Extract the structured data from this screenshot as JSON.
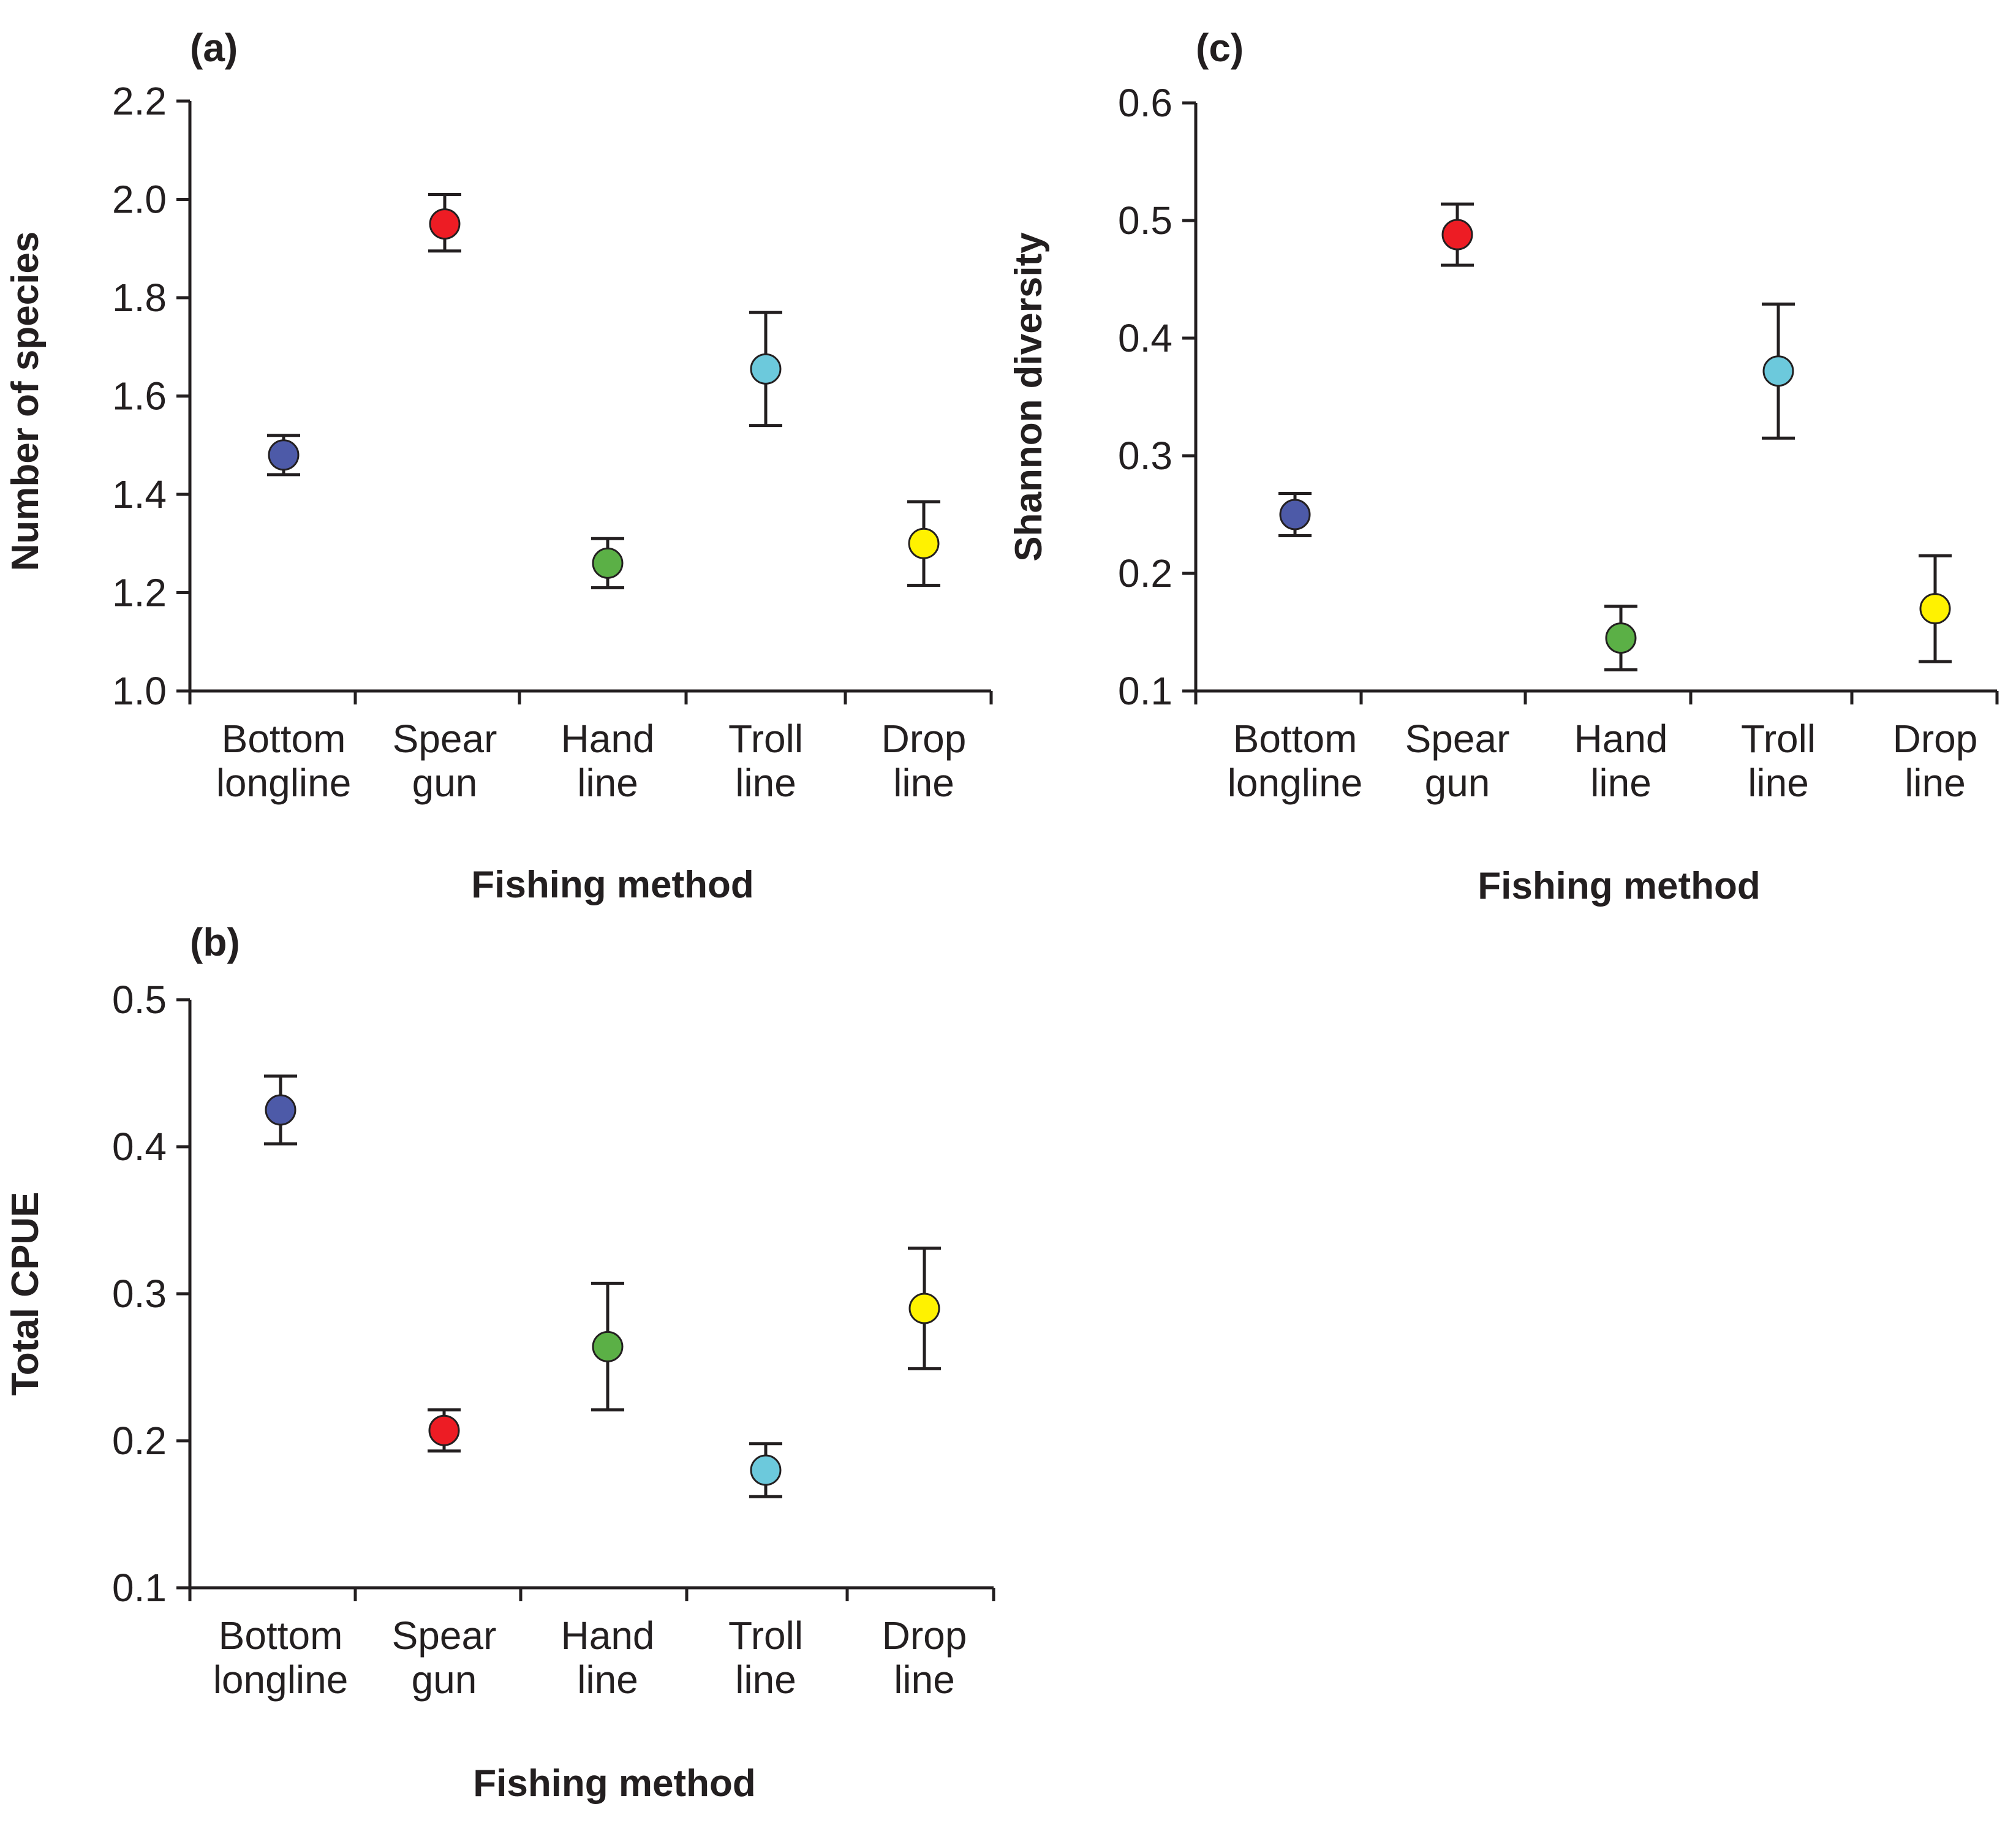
{
  "chart_data": [
    {
      "id": "a",
      "type": "scatter",
      "panel_label": "(a)",
      "xlabel": "Fishing method",
      "ylabel": "Number of species",
      "categories": [
        [
          "Bottom",
          "longline"
        ],
        [
          "Spear",
          "gun"
        ],
        [
          "Hand",
          "line"
        ],
        [
          "Troll",
          "line"
        ],
        [
          "Drop",
          "line"
        ]
      ],
      "ylim": [
        1.0,
        2.2
      ],
      "yticks": [
        1.0,
        1.2,
        1.4,
        1.6,
        1.8,
        2.0,
        2.2
      ],
      "ytick_labels": [
        "1.0",
        "1.2",
        "1.4",
        "1.6",
        "1.8",
        "2.0",
        "2.2"
      ],
      "values": [
        1.48,
        1.95,
        1.26,
        1.655,
        1.3
      ],
      "err_low": [
        1.44,
        1.895,
        1.21,
        1.54,
        1.215
      ],
      "err_high": [
        1.52,
        2.01,
        1.31,
        1.77,
        1.385
      ],
      "colors": [
        "#4d5aa8",
        "#ed1c24",
        "#5bb046",
        "#6cc9dc",
        "#fff200"
      ]
    },
    {
      "id": "b",
      "type": "scatter",
      "panel_label": "(b)",
      "xlabel": "Fishing method",
      "ylabel": "Total CPUE",
      "categories": [
        [
          "Bottom",
          "longline"
        ],
        [
          "Spear",
          "gun"
        ],
        [
          "Hand",
          "line"
        ],
        [
          "Troll",
          "line"
        ],
        [
          "Drop",
          "line"
        ]
      ],
      "ylim": [
        0.1,
        0.5
      ],
      "yticks": [
        0.1,
        0.2,
        0.3,
        0.4,
        0.5
      ],
      "ytick_labels": [
        "0.1",
        "0.2",
        "0.3",
        "0.4",
        "0.5"
      ],
      "values": [
        0.425,
        0.207,
        0.264,
        0.18,
        0.29
      ],
      "err_low": [
        0.402,
        0.193,
        0.221,
        0.162,
        0.249
      ],
      "err_high": [
        0.448,
        0.221,
        0.307,
        0.198,
        0.331
      ],
      "colors": [
        "#4d5aa8",
        "#ed1c24",
        "#5bb046",
        "#6cc9dc",
        "#fff200"
      ]
    },
    {
      "id": "c",
      "type": "scatter",
      "panel_label": "(c)",
      "xlabel": "Fishing method",
      "ylabel": "Shannon diversity",
      "categories": [
        [
          "Bottom",
          "longline"
        ],
        [
          "Spear",
          "gun"
        ],
        [
          "Hand",
          "line"
        ],
        [
          "Troll",
          "line"
        ],
        [
          "Drop",
          "line"
        ]
      ],
      "ylim": [
        0.1,
        0.6
      ],
      "yticks": [
        0.1,
        0.2,
        0.3,
        0.4,
        0.5,
        0.6
      ],
      "ytick_labels": [
        "0.1",
        "0.2",
        "0.3",
        "0.4",
        "0.5",
        "0.6"
      ],
      "values": [
        0.25,
        0.488,
        0.145,
        0.372,
        0.17
      ],
      "err_low": [
        0.232,
        0.462,
        0.118,
        0.315,
        0.125
      ],
      "err_high": [
        0.268,
        0.514,
        0.172,
        0.429,
        0.215
      ],
      "colors": [
        "#4d5aa8",
        "#ed1c24",
        "#5bb046",
        "#6cc9dc",
        "#fff200"
      ]
    }
  ]
}
